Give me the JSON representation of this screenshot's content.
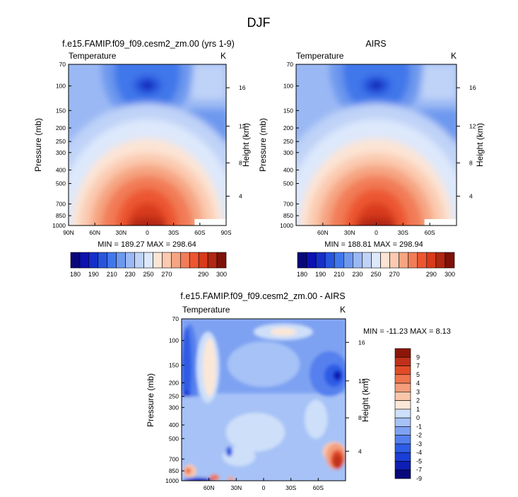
{
  "page_title": "DJF",
  "colors": {
    "temp_scale": [
      "#08087a",
      "#0d12b0",
      "#1530c8",
      "#2855de",
      "#4177ea",
      "#6d98ee",
      "#9ab8f4",
      "#bfd3f8",
      "#dde8fb",
      "#fce4d4",
      "#fbcab0",
      "#f6a582",
      "#f27c57",
      "#ec5631",
      "#d83a1c",
      "#b02712",
      "#7e1208"
    ],
    "diff_scale": [
      "#08087a",
      "#0d1fb5",
      "#1a3ed6",
      "#2d5ce6",
      "#5480ee",
      "#7ea2f2",
      "#a6c2f6",
      "#cddff9",
      "#fbe7d7",
      "#f9c6aa",
      "#f49d7a",
      "#ee754e",
      "#e04c27",
      "#c0301a",
      "#8c1608"
    ]
  },
  "chart_data": [
    {
      "type": "heatmap",
      "title": "f.e15.FAMIP.f09_f09.cesm2_zm.00 (yrs 1-9)",
      "left_label": "Temperature",
      "right_label": "K",
      "ylabel": "Pressure (mb)",
      "ylabel_right": "Height (km)",
      "x_ticks": [
        "90N",
        "60N",
        "30N",
        "0",
        "30S",
        "60S",
        "90S"
      ],
      "x_tick_lats": [
        90,
        60,
        30,
        0,
        -30,
        -60,
        -90
      ],
      "xlim": [
        90,
        -90
      ],
      "y_ticks": [
        70,
        100,
        150,
        200,
        250,
        300,
        400,
        500,
        700,
        850,
        1000
      ],
      "ylim": [
        70,
        1000
      ],
      "y_scale": "log",
      "height_ticks": [
        4,
        8,
        12,
        16
      ],
      "height_tick_pressures": [
        616,
        356,
        194,
        103
      ],
      "stats_text": "MIN = 189.27  MAX = 298.64",
      "min": 189.27,
      "max": 298.64,
      "colorbar_labels": [
        "180",
        "190",
        "210",
        "230",
        "250",
        "270",
        "290",
        "300"
      ],
      "colorbar_levels": [
        180,
        185,
        190,
        200,
        210,
        220,
        230,
        240,
        250,
        260,
        270,
        275,
        280,
        285,
        290,
        295,
        300
      ]
    },
    {
      "type": "heatmap",
      "title": "AIRS",
      "left_label": "Temperature",
      "right_label": "K",
      "ylabel": "Pressure (mb)",
      "ylabel_right": "Height (km)",
      "x_ticks": [
        "60N",
        "30N",
        "0",
        "30S",
        "60S"
      ],
      "x_tick_lats": [
        60,
        30,
        0,
        -30,
        -60
      ],
      "xlim": [
        90,
        -90
      ],
      "y_ticks": [
        70,
        100,
        150,
        200,
        250,
        300,
        400,
        500,
        700,
        850,
        1000
      ],
      "ylim": [
        70,
        1000
      ],
      "y_scale": "log",
      "height_ticks": [
        4,
        8,
        12,
        16
      ],
      "height_tick_pressures": [
        616,
        356,
        194,
        103
      ],
      "stats_text": "MIN = 188.81  MAX = 298.94",
      "min": 188.81,
      "max": 298.94,
      "colorbar_labels": [
        "180",
        "190",
        "210",
        "230",
        "250",
        "270",
        "290",
        "300"
      ],
      "colorbar_levels": [
        180,
        185,
        190,
        200,
        210,
        220,
        230,
        240,
        250,
        260,
        270,
        275,
        280,
        285,
        290,
        295,
        300
      ]
    },
    {
      "type": "heatmap",
      "title": "f.e15.FAMIP.f09_f09.cesm2_zm.00 - AIRS",
      "left_label": "Temperature",
      "right_label": "K",
      "ylabel": "Pressure (mb)",
      "ylabel_right": "Height (km)",
      "x_ticks": [
        "60N",
        "30N",
        "0",
        "30S",
        "60S"
      ],
      "x_tick_lats": [
        60,
        30,
        0,
        -30,
        -60
      ],
      "xlim": [
        90,
        -90
      ],
      "y_ticks": [
        70,
        100,
        150,
        200,
        250,
        300,
        400,
        500,
        700,
        850,
        1000
      ],
      "ylim": [
        70,
        1000
      ],
      "y_scale": "log",
      "height_ticks": [
        4,
        8,
        12,
        16
      ],
      "height_tick_pressures": [
        616,
        356,
        194,
        103
      ],
      "stats_text": "MIN = -11.23  MAX =  8.13",
      "min": -11.23,
      "max": 8.13,
      "colorbar_labels": [
        "9",
        "7",
        "5",
        "4",
        "3",
        "2",
        "1",
        "0",
        "-1",
        "-2",
        "-3",
        "-4",
        "-5",
        "-7",
        "-9"
      ],
      "colorbar_levels": [
        -9,
        -7,
        -5,
        -4,
        -3,
        -2,
        -1,
        0,
        1,
        2,
        3,
        4,
        5,
        7,
        9
      ]
    }
  ]
}
